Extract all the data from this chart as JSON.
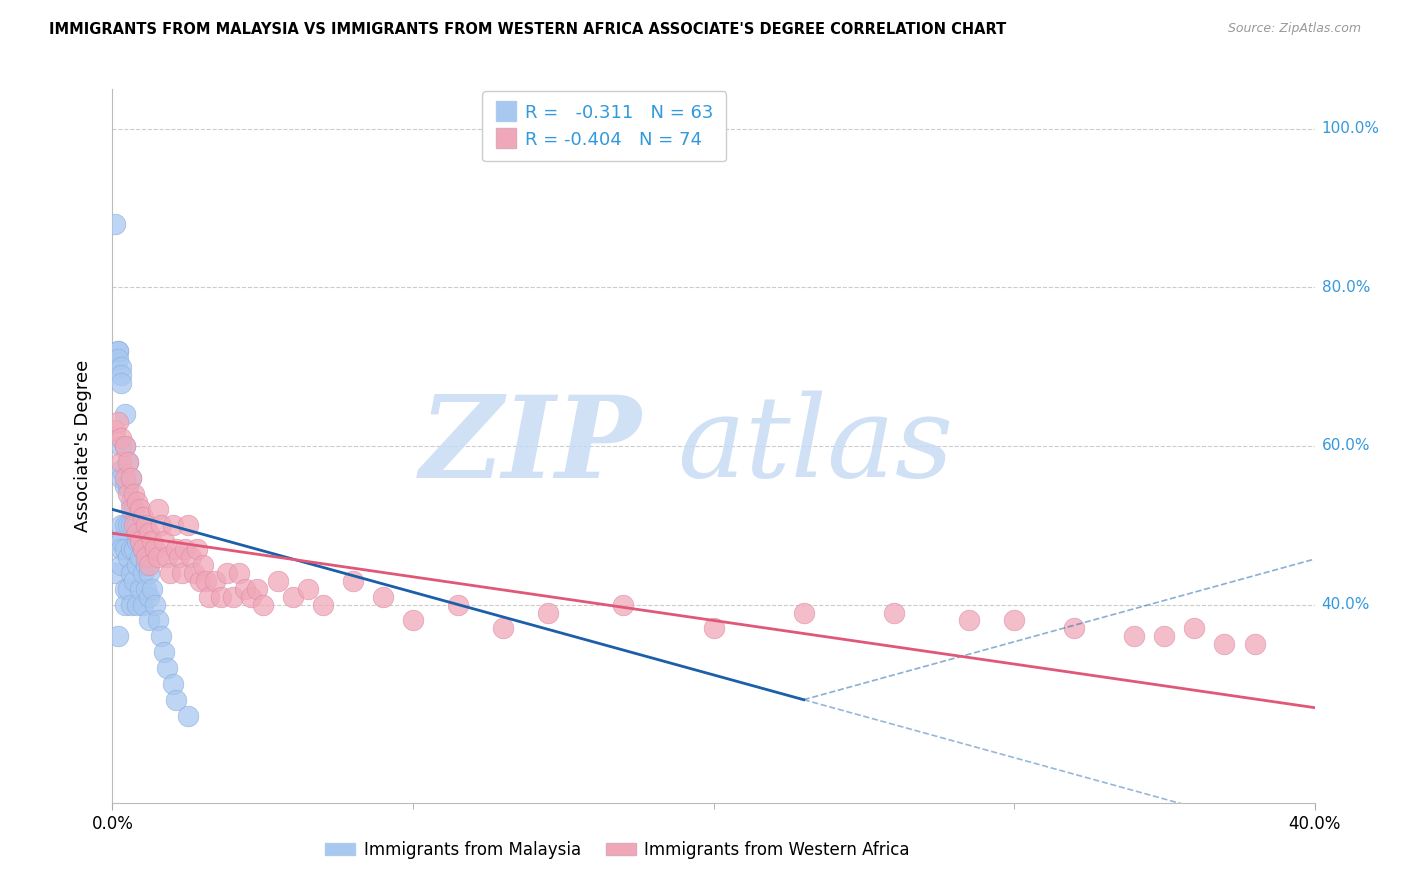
{
  "title": "IMMIGRANTS FROM MALAYSIA VS IMMIGRANTS FROM WESTERN AFRICA ASSOCIATE'S DEGREE CORRELATION CHART",
  "source": "Source: ZipAtlas.com",
  "ylabel": "Associate's Degree",
  "right_yticklabels": [
    "40.0%",
    "60.0%",
    "80.0%",
    "100.0%"
  ],
  "right_ytick_vals": [
    0.4,
    0.6,
    0.8,
    1.0
  ],
  "xlim": [
    0.0,
    0.4
  ],
  "ylim": [
    0.15,
    1.05
  ],
  "xticks": [
    0.0,
    0.4
  ],
  "xticklabels": [
    "0.0%",
    "40.0%"
  ],
  "watermark_zip": "ZIP",
  "watermark_atlas": "atlas",
  "blue_color": "#A8C8F0",
  "pink_color": "#F0A8B8",
  "blue_line_color": "#1A5FA8",
  "pink_line_color": "#E05878",
  "right_axis_color": "#3399DD",
  "legend_text_color": "#3399DD",
  "r1": "-0.311",
  "n1": "63",
  "r2": "-0.404",
  "n2": "74",
  "malaysia_label": "Immigrants from Malaysia",
  "western_africa_label": "Immigrants from Western Africa",
  "malaysia_x": [
    0.001,
    0.001,
    0.002,
    0.002,
    0.002,
    0.002,
    0.002,
    0.003,
    0.003,
    0.003,
    0.003,
    0.003,
    0.003,
    0.003,
    0.003,
    0.003,
    0.003,
    0.004,
    0.004,
    0.004,
    0.004,
    0.004,
    0.004,
    0.004,
    0.005,
    0.005,
    0.005,
    0.005,
    0.005,
    0.006,
    0.006,
    0.006,
    0.006,
    0.006,
    0.006,
    0.007,
    0.007,
    0.007,
    0.007,
    0.008,
    0.008,
    0.008,
    0.008,
    0.009,
    0.009,
    0.009,
    0.01,
    0.01,
    0.01,
    0.011,
    0.011,
    0.012,
    0.012,
    0.012,
    0.013,
    0.014,
    0.015,
    0.016,
    0.017,
    0.018,
    0.02,
    0.021,
    0.025
  ],
  "malaysia_y": [
    0.88,
    0.44,
    0.72,
    0.72,
    0.71,
    0.48,
    0.36,
    0.7,
    0.69,
    0.68,
    0.6,
    0.57,
    0.56,
    0.5,
    0.48,
    0.47,
    0.45,
    0.64,
    0.6,
    0.55,
    0.5,
    0.47,
    0.42,
    0.4,
    0.58,
    0.55,
    0.5,
    0.46,
    0.42,
    0.56,
    0.53,
    0.5,
    0.47,
    0.44,
    0.4,
    0.52,
    0.5,
    0.47,
    0.43,
    0.5,
    0.48,
    0.45,
    0.4,
    0.48,
    0.46,
    0.42,
    0.47,
    0.44,
    0.4,
    0.45,
    0.42,
    0.44,
    0.41,
    0.38,
    0.42,
    0.4,
    0.38,
    0.36,
    0.34,
    0.32,
    0.3,
    0.28,
    0.26
  ],
  "western_x": [
    0.001,
    0.002,
    0.003,
    0.003,
    0.004,
    0.004,
    0.005,
    0.005,
    0.006,
    0.006,
    0.007,
    0.007,
    0.008,
    0.008,
    0.009,
    0.009,
    0.01,
    0.01,
    0.011,
    0.011,
    0.012,
    0.012,
    0.013,
    0.014,
    0.015,
    0.015,
    0.016,
    0.017,
    0.018,
    0.019,
    0.02,
    0.021,
    0.022,
    0.023,
    0.024,
    0.025,
    0.026,
    0.027,
    0.028,
    0.029,
    0.03,
    0.031,
    0.032,
    0.034,
    0.036,
    0.038,
    0.04,
    0.042,
    0.044,
    0.046,
    0.048,
    0.05,
    0.055,
    0.06,
    0.065,
    0.07,
    0.08,
    0.09,
    0.1,
    0.115,
    0.13,
    0.145,
    0.17,
    0.2,
    0.23,
    0.26,
    0.285,
    0.3,
    0.32,
    0.34,
    0.35,
    0.36,
    0.37,
    0.38
  ],
  "western_y": [
    0.62,
    0.63,
    0.61,
    0.58,
    0.6,
    0.56,
    0.58,
    0.54,
    0.56,
    0.52,
    0.54,
    0.5,
    0.53,
    0.49,
    0.52,
    0.48,
    0.51,
    0.47,
    0.5,
    0.46,
    0.49,
    0.45,
    0.48,
    0.47,
    0.52,
    0.46,
    0.5,
    0.48,
    0.46,
    0.44,
    0.5,
    0.47,
    0.46,
    0.44,
    0.47,
    0.5,
    0.46,
    0.44,
    0.47,
    0.43,
    0.45,
    0.43,
    0.41,
    0.43,
    0.41,
    0.44,
    0.41,
    0.44,
    0.42,
    0.41,
    0.42,
    0.4,
    0.43,
    0.41,
    0.42,
    0.4,
    0.43,
    0.41,
    0.38,
    0.4,
    0.37,
    0.39,
    0.4,
    0.37,
    0.39,
    0.39,
    0.38,
    0.38,
    0.37,
    0.36,
    0.36,
    0.37,
    0.35,
    0.35
  ],
  "blue_trend_x": [
    0.0,
    0.23
  ],
  "blue_trend_y": [
    0.52,
    0.28
  ],
  "pink_trend_x": [
    0.0,
    0.4
  ],
  "pink_trend_y": [
    0.49,
    0.27
  ]
}
